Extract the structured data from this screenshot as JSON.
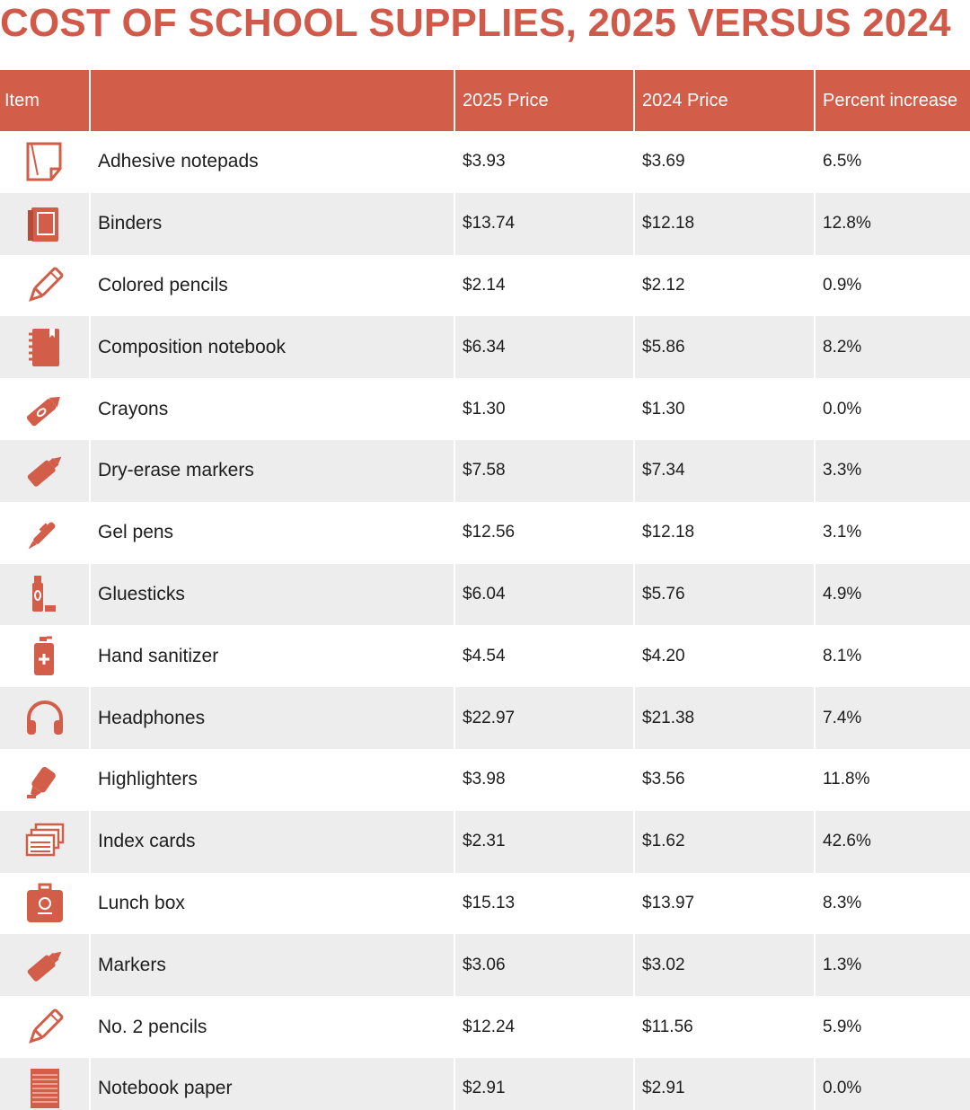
{
  "title": "COST OF SCHOOL SUPPLIES, 2025 VERSUS 2024",
  "accent_color": "#d25e49",
  "headers": {
    "item": "Item",
    "name": "",
    "price_2025": "2025 Price",
    "price_2024": "2024 Price",
    "percent_increase": "Percent increase"
  },
  "rows": [
    {
      "icon": "sticky-note-icon",
      "item": "Adhesive notepads",
      "price_2025": "$3.93",
      "price_2024": "$3.69",
      "percent": "6.5%"
    },
    {
      "icon": "binder-icon",
      "item": "Binders",
      "price_2025": "$13.74",
      "price_2024": "$12.18",
      "percent": "12.8%"
    },
    {
      "icon": "pencil-outline-icon",
      "item": "Colored pencils",
      "price_2025": "$2.14",
      "price_2024": "$2.12",
      "percent": "0.9%"
    },
    {
      "icon": "notebook-icon",
      "item": "Composition notebook",
      "price_2025": "$6.34",
      "price_2024": "$5.86",
      "percent": "8.2%"
    },
    {
      "icon": "crayon-icon",
      "item": "Crayons",
      "price_2025": "$1.30",
      "price_2024": "$1.30",
      "percent": "0.0%"
    },
    {
      "icon": "marker-icon",
      "item": "Dry-erase markers",
      "price_2025": "$7.58",
      "price_2024": "$7.34",
      "percent": "3.3%"
    },
    {
      "icon": "pen-icon",
      "item": "Gel pens",
      "price_2025": "$12.56",
      "price_2024": "$12.18",
      "percent": "3.1%"
    },
    {
      "icon": "gluestick-icon",
      "item": "Gluesticks",
      "price_2025": "$6.04",
      "price_2024": "$5.76",
      "percent": "4.9%"
    },
    {
      "icon": "sanitizer-icon",
      "item": "Hand sanitizer",
      "price_2025": "$4.54",
      "price_2024": "$4.20",
      "percent": "8.1%"
    },
    {
      "icon": "headphones-icon",
      "item": "Headphones",
      "price_2025": "$22.97",
      "price_2024": "$21.38",
      "percent": "7.4%"
    },
    {
      "icon": "highlighter-icon",
      "item": "Highlighters",
      "price_2025": "$3.98",
      "price_2024": "$3.56",
      "percent": "11.8%"
    },
    {
      "icon": "index-cards-icon",
      "item": "Index cards",
      "price_2025": "$2.31",
      "price_2024": "$1.62",
      "percent": "42.6%"
    },
    {
      "icon": "lunch-box-icon",
      "item": "Lunch box",
      "price_2025": "$15.13",
      "price_2024": "$13.97",
      "percent": "8.3%"
    },
    {
      "icon": "marker-icon",
      "item": "Markers",
      "price_2025": "$3.06",
      "price_2024": "$3.02",
      "percent": "1.3%"
    },
    {
      "icon": "pencil-outline-icon",
      "item": "No. 2 pencils",
      "price_2025": "$12.24",
      "price_2024": "$11.56",
      "percent": "5.9%"
    },
    {
      "icon": "notebook-paper-icon",
      "item": "Notebook paper",
      "price_2025": "$2.91",
      "price_2024": "$2.91",
      "percent": "0.0%"
    }
  ]
}
